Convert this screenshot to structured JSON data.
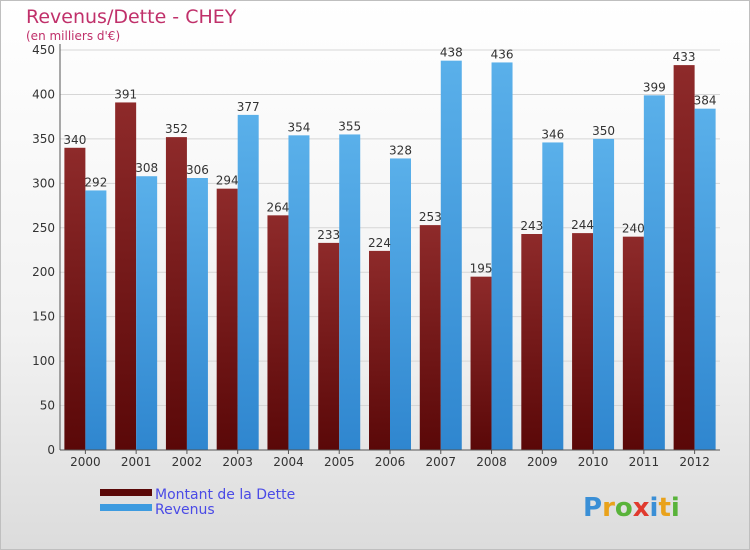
{
  "chart_data": {
    "type": "bar",
    "title": "Revenus/Dette - CHEY",
    "subtitle": "(en milliers d'€)",
    "categories": [
      "2000",
      "2001",
      "2002",
      "2003",
      "2004",
      "2005",
      "2006",
      "2007",
      "2008",
      "2009",
      "2010",
      "2011",
      "2012"
    ],
    "series": [
      {
        "name": "Montant de la Dette",
        "color": "#7a1e1e",
        "values": [
          340,
          391,
          352,
          294,
          264,
          233,
          224,
          253,
          195,
          243,
          244,
          240,
          433
        ]
      },
      {
        "name": "Revenus",
        "color": "#3d9be0",
        "values": [
          292,
          308,
          306,
          377,
          354,
          355,
          328,
          438,
          436,
          346,
          350,
          399,
          384
        ]
      }
    ],
    "yticks": [
      0,
      50,
      100,
      150,
      200,
      250,
      300,
      350,
      400,
      450
    ],
    "ylim": [
      0,
      450
    ],
    "grid": true,
    "legend_position": "bottom-left"
  },
  "logo": {
    "letters": [
      "P",
      "r",
      "o",
      "x",
      "i",
      "t",
      "i"
    ],
    "colors": [
      "#3a8fd6",
      "#e9a21b",
      "#59b33a",
      "#e03a2e",
      "#3a8fd6",
      "#e9a21b",
      "#59b33a"
    ]
  }
}
